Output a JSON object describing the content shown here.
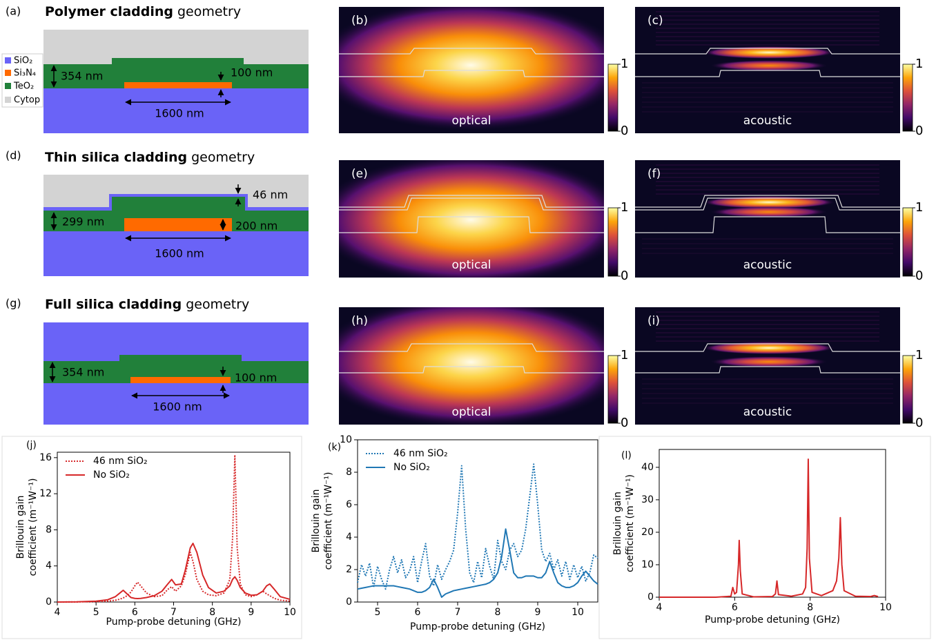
{
  "geometry_panels": [
    {
      "label": "(a)",
      "title_bold": "Polymer cladding",
      "title_rest": "geometry",
      "dimensions": [
        "354 nm",
        "100 nm",
        "1600 nm"
      ]
    },
    {
      "label": "(d)",
      "title_bold": "Thin silica cladding",
      "title_rest": "geometry",
      "dimensions": [
        "299 nm",
        "46 nm",
        "200 nm",
        "1600 nm"
      ]
    },
    {
      "label": "(g)",
      "title_bold": "Full silica cladding",
      "title_rest": "geometry",
      "dimensions": [
        "354 nm",
        "100 nm",
        "1600 nm"
      ]
    }
  ],
  "material_legend": [
    "SiO₂",
    "Si₃N₄",
    "TeO₂",
    "Cytop"
  ],
  "mode_panels": [
    {
      "label": "(b)",
      "caption": "optical"
    },
    {
      "label": "(c)",
      "caption": "acoustic"
    },
    {
      "label": "(e)",
      "caption": "optical"
    },
    {
      "label": "(f)",
      "caption": "acoustic"
    },
    {
      "label": "(h)",
      "caption": "optical"
    },
    {
      "label": "(i)",
      "caption": "acoustic"
    }
  ],
  "colorbar_ticks": [
    0,
    1
  ],
  "chart_data": [
    {
      "type": "line",
      "panel_label": "(j)",
      "xlabel": "Pump-probe detuning (GHz)",
      "ylabel": [
        "Brillouin gain",
        "coefficient (m⁻¹W⁻¹)"
      ],
      "xlim": [
        4,
        10
      ],
      "xticks": [
        4,
        5,
        6,
        7,
        8,
        9,
        10
      ],
      "ylim": [
        0,
        16.6
      ],
      "yticks": [
        0,
        4,
        8,
        12,
        16
      ],
      "legend": "upper left",
      "x": [
        4,
        4.5,
        5,
        5.3,
        5.5,
        5.6,
        5.7,
        5.8,
        5.9,
        6.0,
        6.07,
        6.15,
        6.3,
        6.5,
        6.7,
        6.85,
        6.95,
        7.05,
        7.2,
        7.3,
        7.43,
        7.5,
        7.6,
        7.75,
        7.9,
        8.1,
        8.3,
        8.45,
        8.52,
        8.58,
        8.64,
        8.72,
        8.85,
        9.0,
        9.15,
        9.3,
        9.4,
        9.48,
        9.6,
        9.75,
        10
      ],
      "series": [
        {
          "name": "46 nm SiO₂",
          "color": "#d62728",
          "dash": "dotted",
          "values": [
            0,
            0.01,
            0.05,
            0.1,
            0.2,
            0.3,
            0.45,
            0.7,
            1.1,
            1.8,
            2.2,
            1.8,
            1.0,
            0.6,
            0.7,
            1.4,
            1.7,
            1.2,
            1.8,
            3.0,
            5.5,
            4.5,
            2.5,
            1.2,
            0.8,
            0.7,
            1.0,
            2.5,
            7.0,
            16.3,
            6.0,
            2.0,
            0.8,
            0.6,
            0.8,
            1.2,
            0.9,
            0.7,
            0.4,
            0.2,
            0.1
          ]
        },
        {
          "name": "No SiO₂",
          "color": "#d62728",
          "dash": "solid",
          "values": [
            0,
            0.02,
            0.1,
            0.25,
            0.6,
            0.95,
            1.3,
            0.9,
            0.5,
            0.4,
            0.38,
            0.4,
            0.5,
            0.7,
            1.2,
            2.0,
            2.5,
            1.9,
            2.0,
            3.5,
            6.0,
            6.5,
            5.5,
            3.0,
            1.6,
            1.0,
            1.2,
            1.8,
            2.5,
            2.8,
            2.4,
            1.6,
            1.0,
            0.75,
            0.8,
            1.2,
            1.8,
            2.0,
            1.4,
            0.6,
            0.3
          ]
        }
      ]
    },
    {
      "type": "line",
      "panel_label": "(k)",
      "xlabel": "Pump-probe detuning (GHz)",
      "ylabel": [
        "Brillouin gain",
        "coefficient (m⁻¹W⁻¹)"
      ],
      "xlim": [
        4.5,
        10.5
      ],
      "xticks": [
        5,
        6,
        7,
        8,
        9,
        10
      ],
      "ylim": [
        0,
        10
      ],
      "yticks": [
        0,
        2,
        4,
        6,
        8,
        10
      ],
      "legend": "upper left",
      "x": [
        4.5,
        4.6,
        4.7,
        4.8,
        4.9,
        5.0,
        5.1,
        5.2,
        5.3,
        5.4,
        5.5,
        5.6,
        5.7,
        5.8,
        5.9,
        6.0,
        6.1,
        6.2,
        6.3,
        6.4,
        6.5,
        6.6,
        6.7,
        6.8,
        6.9,
        7.0,
        7.1,
        7.2,
        7.3,
        7.4,
        7.5,
        7.6,
        7.7,
        7.8,
        7.9,
        8.0,
        8.1,
        8.2,
        8.3,
        8.4,
        8.5,
        8.6,
        8.7,
        8.8,
        8.9,
        9.0,
        9.1,
        9.2,
        9.3,
        9.4,
        9.5,
        9.6,
        9.7,
        9.8,
        9.9,
        10.0,
        10.1,
        10.2,
        10.3,
        10.4,
        10.5
      ],
      "series": [
        {
          "name": "46 nm SiO₂",
          "color": "#1f77b4",
          "dash": "dotted",
          "values": [
            1.2,
            2.3,
            1.6,
            2.4,
            0.9,
            2.2,
            1.4,
            0.8,
            2.0,
            2.8,
            1.8,
            2.6,
            1.5,
            1.9,
            2.8,
            1.2,
            2.5,
            3.6,
            1.6,
            1.0,
            2.3,
            1.4,
            2.0,
            2.5,
            3.2,
            5.5,
            8.4,
            4.5,
            1.8,
            1.2,
            2.5,
            1.5,
            3.3,
            2.2,
            1.4,
            3.8,
            2.5,
            2.0,
            3.2,
            3.6,
            2.8,
            3.2,
            4.5,
            6.5,
            8.5,
            6.0,
            3.2,
            2.5,
            3.0,
            2.0,
            2.6,
            1.6,
            2.5,
            1.4,
            2.3,
            1.5,
            2.2,
            1.3,
            1.8,
            2.9,
            2.7
          ]
        },
        {
          "name": "No SiO₂",
          "color": "#1f77b4",
          "dash": "solid",
          "values": [
            0.8,
            0.85,
            0.9,
            0.95,
            1.0,
            1.0,
            1.0,
            1.0,
            1.0,
            1.0,
            0.95,
            0.9,
            0.85,
            0.8,
            0.7,
            0.6,
            0.6,
            0.7,
            0.9,
            1.4,
            0.9,
            0.3,
            0.5,
            0.6,
            0.7,
            0.75,
            0.8,
            0.85,
            0.9,
            0.95,
            1.0,
            1.05,
            1.1,
            1.2,
            1.4,
            1.8,
            2.8,
            4.5,
            3.2,
            1.8,
            1.5,
            1.5,
            1.6,
            1.6,
            1.6,
            1.5,
            1.5,
            1.8,
            2.5,
            1.8,
            1.2,
            1.0,
            0.9,
            0.9,
            1.0,
            1.2,
            1.6,
            1.9,
            1.6,
            1.3,
            1.1
          ]
        }
      ]
    },
    {
      "type": "line",
      "panel_label": "(l)",
      "xlabel": "Pump-probe detuning (GHz)",
      "ylabel": [
        "Brillouin gain",
        "coefficient (m⁻¹W⁻¹)"
      ],
      "xlim": [
        4,
        10
      ],
      "xticks": [
        4,
        6,
        8,
        10
      ],
      "ylim": [
        0,
        45.5
      ],
      "yticks": [
        0,
        10,
        20,
        30,
        40
      ],
      "x": [
        4,
        5.5,
        5.9,
        5.95,
        6.0,
        6.05,
        6.1,
        6.12,
        6.15,
        6.2,
        6.5,
        7.0,
        7.08,
        7.12,
        7.16,
        7.5,
        7.8,
        7.88,
        7.92,
        7.95,
        7.98,
        8.05,
        8.3,
        8.6,
        8.7,
        8.76,
        8.8,
        8.84,
        8.9,
        9.2,
        9.6,
        9.7,
        9.8
      ],
      "series": [
        {
          "color": "#d62728",
          "dash": "solid",
          "values": [
            0,
            0,
            0.3,
            3,
            1,
            1.5,
            10,
            17.5,
            8,
            1,
            0.1,
            0.2,
            1,
            5,
            0.8,
            0.3,
            1,
            3,
            15,
            42.5,
            12,
            1.5,
            0.5,
            2,
            5,
            12,
            24.5,
            10,
            2,
            0.3,
            0.2,
            0.5,
            0.2
          ]
        }
      ]
    }
  ]
}
